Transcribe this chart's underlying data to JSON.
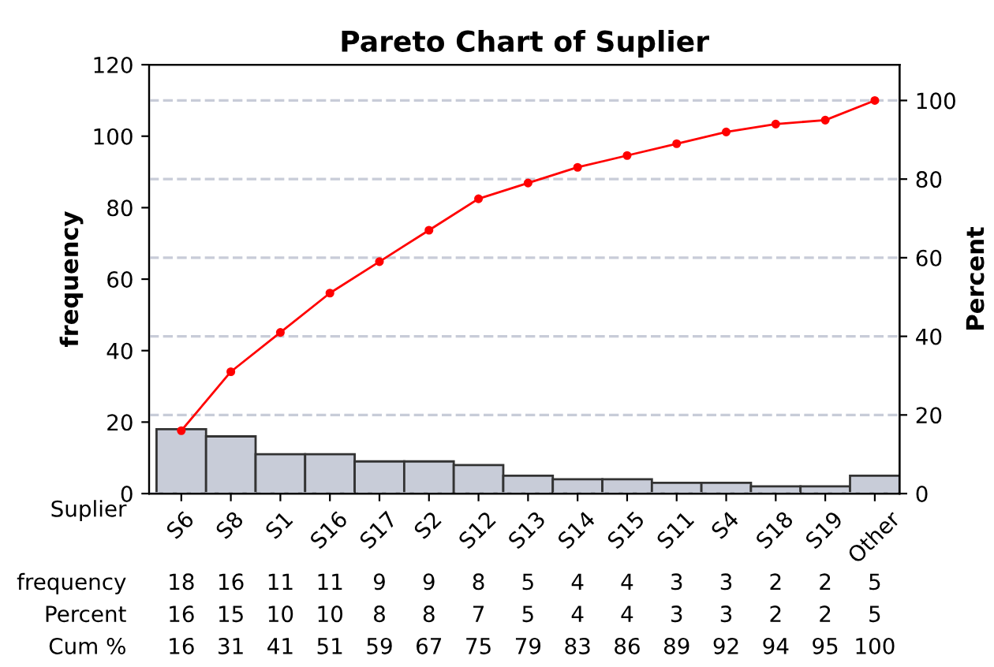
{
  "chart_data": {
    "type": "bar",
    "title": "Pareto Chart of Suplier",
    "xlabel": "Suplier",
    "ylabel": "frequency",
    "y2label": "Percent",
    "categories": [
      "S6",
      "S8",
      "S1",
      "S16",
      "S17",
      "S2",
      "S12",
      "S13",
      "S14",
      "S15",
      "S11",
      "S4",
      "S18",
      "S19",
      "Other"
    ],
    "series": [
      {
        "color": "#c8ccd8",
        "values": [
          18,
          16,
          11,
          11,
          9,
          9,
          8,
          5,
          4,
          4,
          3,
          3,
          2,
          2,
          5
        ]
      },
      {
        "type": "line",
        "axis": "y2",
        "color": "#ff0000",
        "values": [
          16,
          31,
          41,
          51,
          59,
          67,
          75,
          79,
          83,
          86,
          89,
          92,
          94,
          95,
          100
        ]
      }
    ],
    "ylim": [
      0,
      120
    ],
    "yticks": [
      0,
      20,
      40,
      60,
      80,
      100,
      120
    ],
    "y2lim": [
      0,
      109.1
    ],
    "y2ticks": [
      0,
      20,
      40,
      60,
      80,
      100
    ],
    "annotations": [
      "frequency",
      "Percent",
      "Cum %",
      "16",
      "15",
      "10",
      "10",
      "8",
      "8",
      "7",
      "5",
      "4",
      "4",
      "3",
      "3",
      "2",
      "2",
      "5"
    ],
    "grid": "y2",
    "marker": "circle",
    "line_style": "solid",
    "data_labels": true
  }
}
